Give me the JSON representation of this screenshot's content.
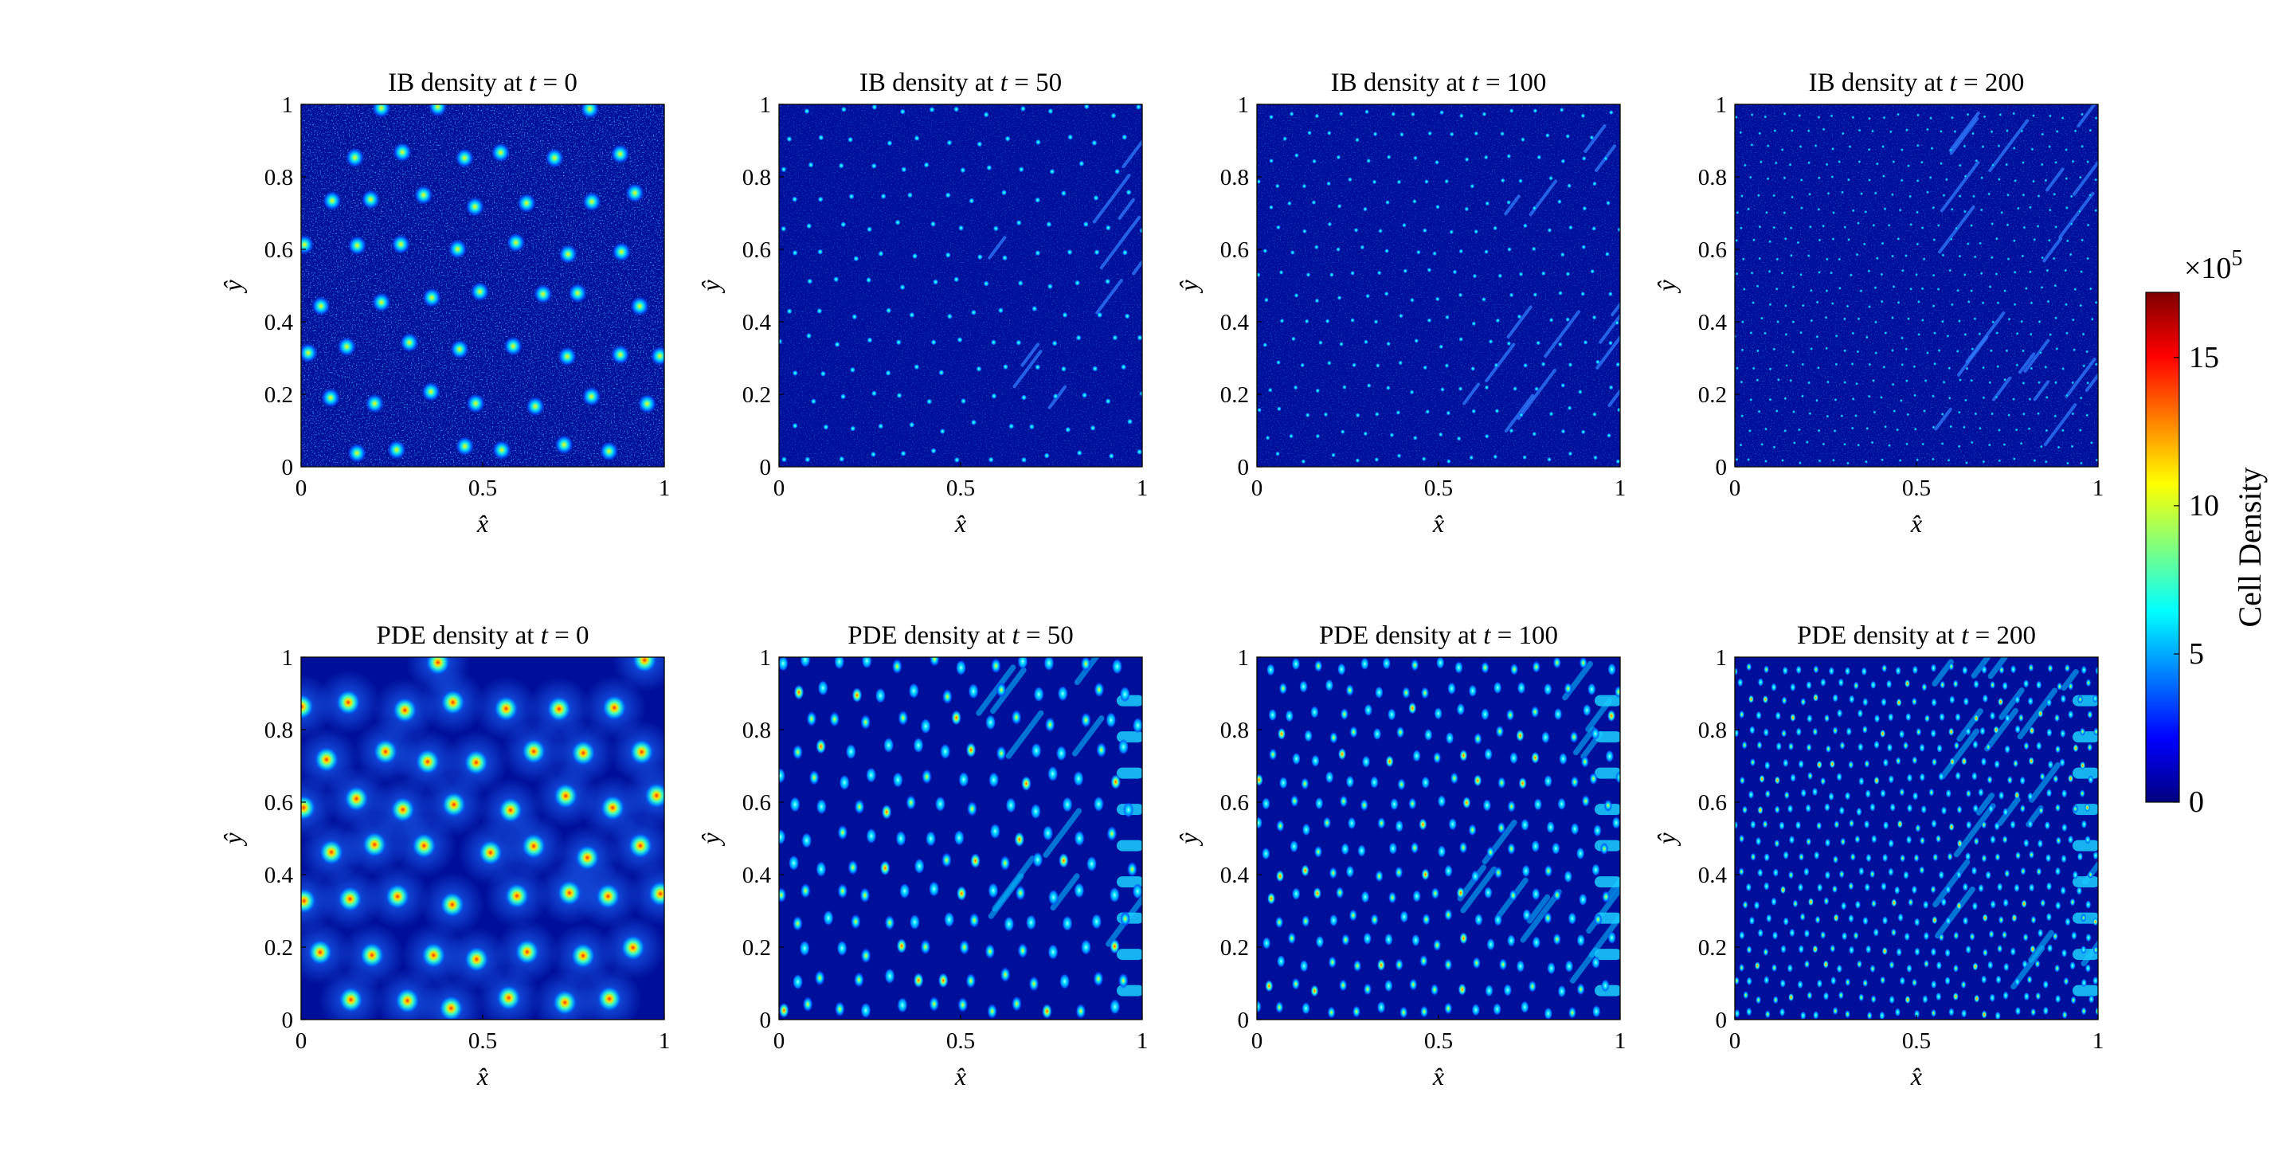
{
  "chart_data": [
    {
      "type": "heatmap",
      "title_prefix": "IB density at ",
      "title_var": "t",
      "title_suffix": " = 0",
      "xlabel": "x̂",
      "ylabel": "ŷ",
      "xlim": [
        0,
        1
      ],
      "ylim": [
        0,
        1
      ],
      "x_ticks": [
        "0",
        "0.5",
        "1"
      ],
      "y_ticks": [
        "0",
        "0.2",
        "0.4",
        "0.6",
        "0.8",
        "1"
      ]
    },
    {
      "type": "heatmap",
      "title_prefix": "IB density at ",
      "title_var": "t",
      "title_suffix": " = 50",
      "xlabel": "x̂",
      "ylabel": "ŷ",
      "xlim": [
        0,
        1
      ],
      "ylim": [
        0,
        1
      ],
      "x_ticks": [
        "0",
        "0.5",
        "1"
      ],
      "y_ticks": [
        "0",
        "0.2",
        "0.4",
        "0.6",
        "0.8",
        "1"
      ]
    },
    {
      "type": "heatmap",
      "title_prefix": "IB density at ",
      "title_var": "t",
      "title_suffix": " = 100",
      "xlabel": "x̂",
      "ylabel": "ŷ",
      "xlim": [
        0,
        1
      ],
      "ylim": [
        0,
        1
      ],
      "x_ticks": [
        "0",
        "0.5",
        "1"
      ],
      "y_ticks": [
        "0",
        "0.2",
        "0.4",
        "0.6",
        "0.8",
        "1"
      ]
    },
    {
      "type": "heatmap",
      "title_prefix": "IB density at ",
      "title_var": "t",
      "title_suffix": " = 200",
      "xlabel": "x̂",
      "ylabel": "ŷ",
      "xlim": [
        0,
        1
      ],
      "ylim": [
        0,
        1
      ],
      "x_ticks": [
        "0",
        "0.5",
        "1"
      ],
      "y_ticks": [
        "0",
        "0.2",
        "0.4",
        "0.6",
        "0.8",
        "1"
      ]
    },
    {
      "type": "heatmap",
      "title_prefix": "PDE density at ",
      "title_var": "t",
      "title_suffix": " = 0",
      "xlabel": "x̂",
      "ylabel": "ŷ",
      "xlim": [
        0,
        1
      ],
      "ylim": [
        0,
        1
      ],
      "x_ticks": [
        "0",
        "0.5",
        "1"
      ],
      "y_ticks": [
        "0",
        "0.2",
        "0.4",
        "0.6",
        "0.8",
        "1"
      ]
    },
    {
      "type": "heatmap",
      "title_prefix": "PDE density at ",
      "title_var": "t",
      "title_suffix": " = 50",
      "xlabel": "x̂",
      "ylabel": "ŷ",
      "xlim": [
        0,
        1
      ],
      "ylim": [
        0,
        1
      ],
      "x_ticks": [
        "0",
        "0.5",
        "1"
      ],
      "y_ticks": [
        "0",
        "0.2",
        "0.4",
        "0.6",
        "0.8",
        "1"
      ]
    },
    {
      "type": "heatmap",
      "title_prefix": "PDE density at ",
      "title_var": "t",
      "title_suffix": " = 100",
      "xlabel": "x̂",
      "ylabel": "ŷ",
      "xlim": [
        0,
        1
      ],
      "ylim": [
        0,
        1
      ],
      "x_ticks": [
        "0",
        "0.5",
        "1"
      ],
      "y_ticks": [
        "0",
        "0.2",
        "0.4",
        "0.6",
        "0.8",
        "1"
      ]
    },
    {
      "type": "heatmap",
      "title_prefix": "PDE density at ",
      "title_var": "t",
      "title_suffix": " = 200",
      "xlabel": "x̂",
      "ylabel": "ŷ",
      "xlim": [
        0,
        1
      ],
      "ylim": [
        0,
        1
      ],
      "x_ticks": [
        "0",
        "0.5",
        "1"
      ],
      "y_ticks": [
        "0",
        "0.2",
        "0.4",
        "0.6",
        "0.8",
        "1"
      ]
    }
  ],
  "colorbar": {
    "label": "Cell Density",
    "multiplier_prefix": "×10",
    "multiplier_exp": "5",
    "ticks": [
      "0",
      "5",
      "10",
      "15"
    ],
    "tick_values": [
      0,
      5,
      10,
      15
    ],
    "range": [
      0,
      17.2
    ],
    "colormap": "jet",
    "colors": [
      "#00007f",
      "#0000ff",
      "#007fff",
      "#00ffff",
      "#7fff7f",
      "#ffff00",
      "#ff7f00",
      "#ff0000",
      "#7f0000"
    ],
    "background_color": "#000f9a"
  }
}
